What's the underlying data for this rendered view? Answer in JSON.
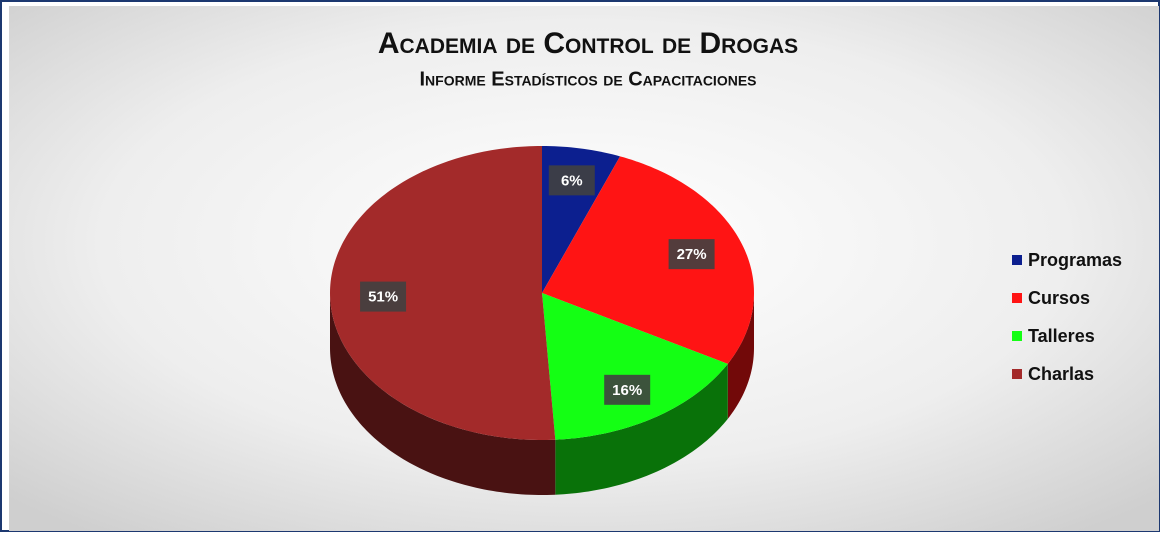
{
  "chart_data": {
    "type": "pie",
    "title": "Academia de Control de Drogas",
    "subtitle": "Informe Estadísticos de Capacitaciones",
    "categories": [
      "Programas",
      "Cursos",
      "Talleres",
      "Charlas"
    ],
    "values": [
      6,
      27,
      16,
      51
    ],
    "value_labels": [
      "6%",
      "27%",
      "16%",
      "51%"
    ],
    "colors": [
      "#0c1f8f",
      "#ff1414",
      "#14ff14",
      "#a32a2a"
    ],
    "legend": "right"
  }
}
